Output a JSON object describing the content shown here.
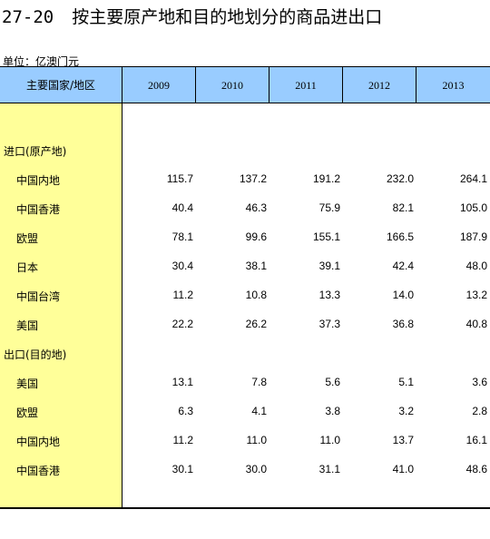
{
  "title": {
    "number": "27-20",
    "text": "按主要原产地和目的地划分的商品进出口"
  },
  "unit": "单位：亿澳门元",
  "header": {
    "stub": "主要国家/地区",
    "years": [
      "2009",
      "2010",
      "2011",
      "2012",
      "2013"
    ]
  },
  "sections": [
    {
      "label": "进口(原产地)",
      "rows": [
        {
          "name": "中国内地",
          "values": [
            "115.7",
            "137.2",
            "191.2",
            "232.0",
            "264.1"
          ]
        },
        {
          "name": "中国香港",
          "values": [
            "40.4",
            "46.3",
            "75.9",
            "82.1",
            "105.0"
          ]
        },
        {
          "name": "欧盟",
          "values": [
            "78.1",
            "99.6",
            "155.1",
            "166.5",
            "187.9"
          ]
        },
        {
          "name": "日本",
          "values": [
            "30.4",
            "38.1",
            "39.1",
            "42.4",
            "48.0"
          ]
        },
        {
          "name": "中国台湾",
          "values": [
            "11.2",
            "10.8",
            "13.3",
            "14.0",
            "13.2"
          ]
        },
        {
          "name": "美国",
          "values": [
            "22.2",
            "26.2",
            "37.3",
            "36.8",
            "40.8"
          ]
        }
      ]
    },
    {
      "label": "出口(目的地)",
      "rows": [
        {
          "name": "美国",
          "values": [
            "13.1",
            "7.8",
            "5.6",
            "5.1",
            "3.6"
          ]
        },
        {
          "name": "欧盟",
          "values": [
            "6.3",
            "4.1",
            "3.8",
            "3.2",
            "2.8"
          ]
        },
        {
          "name": "中国内地",
          "values": [
            "11.2",
            "11.0",
            "11.0",
            "13.7",
            "16.1"
          ]
        },
        {
          "name": "中国香港",
          "values": [
            "30.1",
            "30.0",
            "31.1",
            "41.0",
            "48.6"
          ]
        }
      ]
    }
  ]
}
